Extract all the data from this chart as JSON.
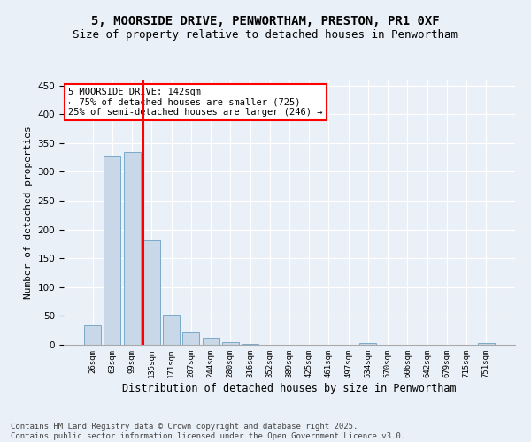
{
  "title_line1": "5, MOORSIDE DRIVE, PENWORTHAM, PRESTON, PR1 0XF",
  "title_line2": "Size of property relative to detached houses in Penwortham",
  "xlabel": "Distribution of detached houses by size in Penwortham",
  "ylabel": "Number of detached properties",
  "categories": [
    "26sqm",
    "63sqm",
    "99sqm",
    "135sqm",
    "171sqm",
    "207sqm",
    "244sqm",
    "280sqm",
    "316sqm",
    "352sqm",
    "389sqm",
    "425sqm",
    "461sqm",
    "497sqm",
    "534sqm",
    "570sqm",
    "606sqm",
    "642sqm",
    "679sqm",
    "715sqm",
    "751sqm"
  ],
  "values": [
    33,
    327,
    335,
    181,
    52,
    21,
    13,
    5,
    1,
    0,
    0,
    0,
    0,
    0,
    3,
    0,
    0,
    0,
    0,
    0,
    3
  ],
  "bar_color": "#c8d8e8",
  "bar_edge_color": "#7aaac8",
  "annotation_text": "5 MOORSIDE DRIVE: 142sqm\n← 75% of detached houses are smaller (725)\n25% of semi-detached houses are larger (246) →",
  "annotation_box_color": "white",
  "annotation_box_edge_color": "red",
  "vline_x_index": 3,
  "vline_color": "red",
  "ylim": [
    0,
    460
  ],
  "yticks": [
    0,
    50,
    100,
    150,
    200,
    250,
    300,
    350,
    400,
    450
  ],
  "bg_color": "#eaf0f8",
  "plot_bg_color": "#eaf0f8",
  "footnote": "Contains HM Land Registry data © Crown copyright and database right 2025.\nContains public sector information licensed under the Open Government Licence v3.0.",
  "title_fontsize": 10,
  "subtitle_fontsize": 9,
  "annotation_fontsize": 7.5,
  "footnote_fontsize": 6.5
}
